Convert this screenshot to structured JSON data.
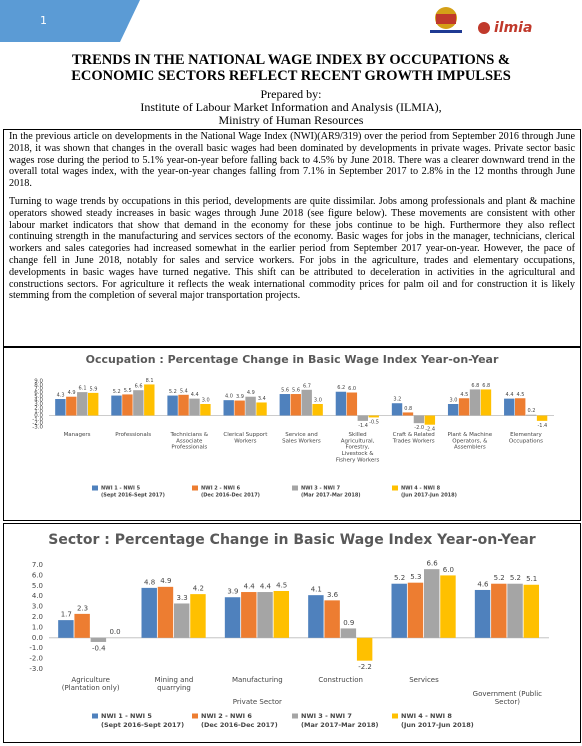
{
  "header": {
    "page_number": "1",
    "logo_text": "ilmia",
    "title": [
      "TRENDS IN THE NATIONAL WAGE INDEX BY OCCUPATIONS &",
      "ECONOMIC SECTORS REFLECT RECENT GROWTH IMPULSES"
    ],
    "prepared_by": "Prepared by:",
    "organization": [
      "Institute of Labour Market Information and Analysis (ILMIA),",
      "Ministry of Human Resources"
    ]
  },
  "body": {
    "paragraphs": [
      "In the previous article on developments in the National Wage Index (NWI)(AR9/319) over the period from September 2016 through June 2018, it was shown that changes in the overall basic wages had been dominated by developments in private wages. Private sector basic wages rose during the period to 5.1% year-on-year before falling back to 4.5% by June 2018. There was a clearer downward trend in the overall total wages index, with the year-on-year changes falling from 7.1% in September 2017 to 2.8% in the 12 months through June 2018.",
      "Turning to wage trends by occupations in this period, developments are quite dissimilar. Jobs among professionals and plant & machine operators showed steady increases in basic wages through June 2018 (see figure below). These movements are consistent with other labour market indicators that show that demand in the economy for these jobs continue to be high. Furthermore they also reflect continuing strength in the manufacturing and services sectors of the economy. Basic wages for jobs in the manager, technicians, clerical workers and sales categories had increased somewhat in the earlier period from September 2017 year-on-year. However, the pace of change fell in June 2018, notably for sales and service workers. For jobs in the agriculture, trades and elementary occupations, developments in basic wages have turned negative. This shift can be attributed to deceleration in activities in the agricultural and constructions sectors. For agriculture it reflects the weak international commodity prices for palm oil and for construction it is likely stemming from the completion of several major transportation projects."
    ]
  },
  "chart_data": [
    {
      "type": "bar",
      "title": "Occupation : Percentage Change in Basic Wage Index Year-on-Year",
      "categories": [
        "Managers",
        "Professionals",
        "Technicians & Associate Professionals",
        "Clerical Support Workers",
        "Service and Sales Workers",
        "Skilled Agricultural, Forestry, Livestock & Fishery Workers",
        "Craft & Related Trades Workers",
        "Plant & Machine Operators, & Assemblers",
        "Elementary Occupations"
      ],
      "series": [
        {
          "name": "NWI 1 - NWI 5",
          "period": "(Sept 2016-Sept 2017)",
          "color": "#4f81bd",
          "values": [
            4.3,
            5.2,
            5.2,
            4.0,
            5.6,
            6.2,
            3.2,
            3.0,
            4.4
          ],
          "value_labels": [
            "4.3",
            "5.2",
            "5.2",
            "4.0",
            "5.6",
            "6.2",
            "3.2",
            "3.0",
            "4.4"
          ]
        },
        {
          "name": "NWI 2 - NWI 6",
          "period": "(Dec 2016-Dec 2017)",
          "color": "#ed7d31",
          "values": [
            4.9,
            5.5,
            5.4,
            3.9,
            5.6,
            6.0,
            0.8,
            4.5,
            4.5
          ],
          "value_labels": [
            "4.9",
            "5.5",
            "5.4",
            "3.9",
            "5.6",
            "6.0",
            "0.8",
            "4.5",
            "4.5"
          ]
        },
        {
          "name": "NWI 3 - NWI 7",
          "period": "(Mar 2017-Mar 2018)",
          "color": "#a5a5a5",
          "values": [
            6.1,
            6.6,
            4.4,
            4.9,
            6.7,
            -1.4,
            -2.0,
            6.8,
            0.2
          ],
          "value_labels": [
            "6.1",
            "6.6",
            "4.4",
            "4.9",
            "6.7",
            "-1.4",
            "-2.0",
            "6.8",
            "0.2"
          ]
        },
        {
          "name": "NWI 4 - NWI 8",
          "period": "(Jun 2017-Jun 2018)",
          "color": "#ffc000",
          "values": [
            5.9,
            8.1,
            3.0,
            3.4,
            3.0,
            -0.5,
            -2.4,
            6.8,
            -1.4
          ],
          "value_labels": [
            "5.9",
            "8.1",
            "3.0",
            "3.4",
            "3.0",
            "-0.5",
            "-2.4",
            "6.8",
            "-1.4"
          ]
        }
      ],
      "ylim": [
        -3,
        9
      ],
      "yticks": [
        {
          "value": -3,
          "label": "-3.0"
        },
        {
          "value": -2,
          "label": "-2.0"
        },
        {
          "value": -1,
          "label": "-1.0"
        },
        {
          "value": 0,
          "label": "0.0"
        },
        {
          "value": 1,
          "label": "1.0"
        },
        {
          "value": 2,
          "label": "2.0"
        },
        {
          "value": 3,
          "label": "3.0"
        },
        {
          "value": 4,
          "label": "4.0"
        },
        {
          "value": 5,
          "label": "5.0"
        },
        {
          "value": 6,
          "label": "6.0"
        },
        {
          "value": 7,
          "label": "7.0"
        },
        {
          "value": 8,
          "label": "8.0"
        },
        {
          "value": 9,
          "label": "9.0"
        }
      ],
      "grid": false,
      "legend": "bottom"
    },
    {
      "type": "bar",
      "title": "Sector : Percentage Change in Basic Wage Index Year-on-Year",
      "categories": [
        "Agriculture (Plantation only)",
        "Mining and quarrying",
        "Manufacturing",
        "Construction",
        "Services",
        "Government (Public Sector)"
      ],
      "group_label": "Private Sector",
      "series": [
        {
          "name": "NWI 1 - NWI 5",
          "period": "(Sept 2016-Sept 2017)",
          "color": "#4f81bd",
          "values": [
            1.7,
            4.8,
            3.9,
            4.1,
            5.2,
            4.6
          ],
          "value_labels": [
            "1.7",
            "4.8",
            "3.9",
            "4.1",
            "5.2",
            "4.6"
          ]
        },
        {
          "name": "NWI 2 - NWI 6",
          "period": "(Dec 2016-Dec 2017)",
          "color": "#ed7d31",
          "values": [
            2.3,
            4.9,
            4.4,
            3.6,
            5.3,
            5.2
          ],
          "value_labels": [
            "2.3",
            "4.9",
            "4.4",
            "3.6",
            "5.3",
            "5.2"
          ]
        },
        {
          "name": "NWI 3 - NWI 7",
          "period": "(Mar 2017-Mar 2018)",
          "color": "#a5a5a5",
          "values": [
            -0.4,
            3.3,
            4.4,
            0.9,
            6.6,
            5.2
          ],
          "value_labels": [
            "-0.4",
            "3.3",
            "4.4",
            "0.9",
            "6.6",
            "5.2"
          ]
        },
        {
          "name": "NWI 4 - NWI 8",
          "period": "(Jun 2017-Jun 2018)",
          "color": "#ffc000",
          "values": [
            0.0,
            4.2,
            4.5,
            -2.2,
            6.0,
            5.1
          ],
          "value_labels": [
            "0.0",
            "4.2",
            "4.5",
            "-2.2",
            "6.0",
            "5.1"
          ]
        }
      ],
      "ylim": [
        -3,
        7
      ],
      "yticks": [
        {
          "value": -3,
          "label": "-3.0"
        },
        {
          "value": -2,
          "label": "-2.0"
        },
        {
          "value": -1,
          "label": "-1.0"
        },
        {
          "value": 0,
          "label": "0.0"
        },
        {
          "value": 1,
          "label": "1.0"
        },
        {
          "value": 2,
          "label": "2.0"
        },
        {
          "value": 3,
          "label": "3.0"
        },
        {
          "value": 4,
          "label": "4.0"
        },
        {
          "value": 5,
          "label": "5.0"
        },
        {
          "value": 6,
          "label": "6.0"
        },
        {
          "value": 7,
          "label": "7.0"
        }
      ],
      "grid": false,
      "legend": "bottom"
    }
  ]
}
